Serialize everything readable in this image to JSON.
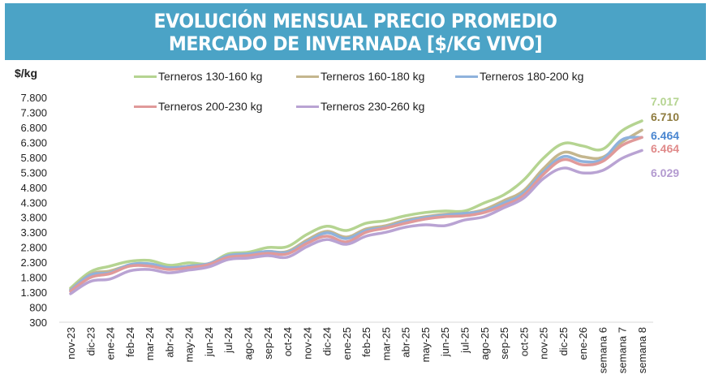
{
  "header": {
    "title_line1": "EVOLUCIÓN MENSUAL PRECIO PROMEDIO",
    "title_line2": "MERCADO DE INVERNADA [$/KG VIVO]",
    "background": "#4ba3c6"
  },
  "chart_data": {
    "type": "line",
    "title": "EVOLUCIÓN MENSUAL PRECIO PROMEDIO MERCADO DE INVERNADA [$/KG VIVO]",
    "ylabel": "$/kg",
    "xlabel": "",
    "ylim": [
      300,
      7800
    ],
    "yticks": [
      7800,
      7300,
      6800,
      6300,
      5800,
      5300,
      4800,
      4300,
      3800,
      3300,
      2800,
      2300,
      1800,
      1300,
      800,
      300
    ],
    "ytick_labels": [
      "7.800",
      "7.300",
      "6.800",
      "6.300",
      "5.800",
      "5.300",
      "4.800",
      "4.300",
      "3.800",
      "3.300",
      "2.800",
      "2.300",
      "1.800",
      "1.300",
      "800",
      "300"
    ],
    "grid": false,
    "legend_position": "top",
    "categories": [
      "nov-23",
      "dic-23",
      "ene-24",
      "feb-24",
      "mar-24",
      "abr-24",
      "may-24",
      "jun-24",
      "jul-24",
      "ago-24",
      "sep-24",
      "oct-24",
      "nov-24",
      "dic-24",
      "ene-25",
      "feb-25",
      "mar-25",
      "abr-25",
      "may-25",
      "jun-25",
      "jul-25",
      "ago-25",
      "sep-25",
      "oct-25",
      "nov-25",
      "dic-25",
      "ene-26",
      "semana 6",
      "semana 7",
      "semana 8"
    ],
    "series": [
      {
        "name": "Terneros 130-160 kg",
        "color": "#b5d491",
        "end_label": "7.017",
        "end_label_color": "#b5d491",
        "values": [
          1440,
          1980,
          2170,
          2330,
          2360,
          2200,
          2280,
          2250,
          2580,
          2630,
          2790,
          2820,
          3230,
          3500,
          3360,
          3600,
          3690,
          3850,
          3960,
          4010,
          4010,
          4280,
          4550,
          5040,
          5770,
          6260,
          6180,
          6070,
          6690,
          7017
        ]
      },
      {
        "name": "Terneros 160-180 kg",
        "color": "#c4b68e",
        "end_label": "6.710",
        "end_label_color": "#8e7b3e",
        "values": [
          1385,
          1900,
          2010,
          2200,
          2220,
          2120,
          2170,
          2250,
          2520,
          2580,
          2660,
          2660,
          3040,
          3330,
          3140,
          3410,
          3520,
          3710,
          3820,
          3900,
          3930,
          4060,
          4360,
          4690,
          5420,
          5960,
          5820,
          5800,
          6310,
          6710
        ]
      },
      {
        "name": "Terneros 180-200 kg",
        "color": "#8fb2dc",
        "end_label": "6.464",
        "end_label_color": "#4a86d0",
        "values": [
          1360,
          1870,
          1950,
          2220,
          2250,
          2120,
          2170,
          2250,
          2520,
          2580,
          2660,
          2630,
          2980,
          3280,
          3090,
          3360,
          3470,
          3660,
          3790,
          3870,
          3930,
          4010,
          4280,
          4610,
          5310,
          5820,
          5660,
          5740,
          6390,
          6464
        ]
      },
      {
        "name": "Terneros 200-230 kg",
        "color": "#e09a9a",
        "end_label": "6.464",
        "end_label_color": "#e08a8a",
        "values": [
          1330,
          1790,
          1920,
          2170,
          2170,
          2060,
          2120,
          2220,
          2470,
          2520,
          2600,
          2580,
          2930,
          3170,
          2980,
          3300,
          3440,
          3600,
          3740,
          3820,
          3850,
          3960,
          4200,
          4530,
          5230,
          5720,
          5550,
          5660,
          6200,
          6464
        ]
      },
      {
        "name": "Terneros 230-260 kg",
        "color": "#b9a3d3",
        "end_label": "6.029",
        "end_label_color": "#b39ad0",
        "values": [
          1250,
          1660,
          1740,
          2010,
          2060,
          1950,
          2040,
          2140,
          2390,
          2440,
          2520,
          2470,
          2820,
          3060,
          2900,
          3170,
          3300,
          3470,
          3550,
          3520,
          3710,
          3820,
          4120,
          4440,
          5090,
          5440,
          5280,
          5360,
          5770,
          6029
        ]
      }
    ]
  }
}
